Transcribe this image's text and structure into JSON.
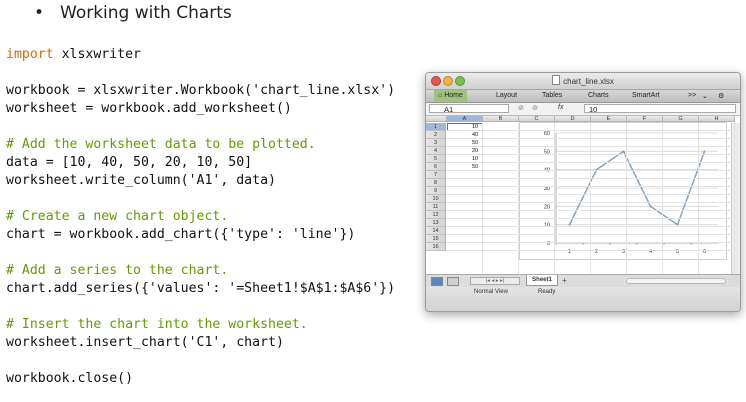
{
  "slide": {
    "bullet": "•",
    "title": "Working with Charts"
  },
  "code": [
    [
      {
        "t": "import",
        "c": "kw"
      },
      {
        "t": " xlsxwriter",
        "c": ""
      }
    ],
    [],
    [
      {
        "t": "workbook = xlsxwriter.Workbook('chart_line.xlsx')",
        "c": ""
      }
    ],
    [
      {
        "t": "worksheet = workbook.add_worksheet()",
        "c": ""
      }
    ],
    [],
    [
      {
        "t": "# Add the worksheet data to be plotted.",
        "c": "cm"
      }
    ],
    [
      {
        "t": "data = [10, 40, 50, 20, 10, 50]",
        "c": ""
      }
    ],
    [
      {
        "t": "worksheet.write_column('A1', data)",
        "c": ""
      }
    ],
    [],
    [
      {
        "t": "# Create a new chart object.",
        "c": "cm"
      }
    ],
    [
      {
        "t": "chart = workbook.add_chart({'type': 'line'})",
        "c": ""
      }
    ],
    [],
    [
      {
        "t": "# Add a series to the chart.",
        "c": "cm"
      }
    ],
    [
      {
        "t": "chart.add_series({'values': '=Sheet1!$A$1:$A$6'})",
        "c": ""
      }
    ],
    [],
    [
      {
        "t": "# Insert the chart into the worksheet.",
        "c": "cm"
      }
    ],
    [
      {
        "t": "worksheet.insert_chart('C1', chart)",
        "c": ""
      }
    ],
    [],
    [
      {
        "t": "workbook.close()",
        "c": ""
      }
    ]
  ],
  "excel": {
    "window_title": "chart_line.xlsx",
    "ribbon_tabs": [
      "Home",
      "Layout",
      "Tables",
      "Charts",
      "SmartArt"
    ],
    "ribbon_more": ">>",
    "name_box": "A1",
    "fx_label": "fx",
    "formula_value": "10",
    "columns": [
      "A",
      "B",
      "C",
      "D",
      "E",
      "F",
      "G",
      "H"
    ],
    "rows": [
      "1",
      "2",
      "3",
      "4",
      "5",
      "6",
      "7",
      "8",
      "9",
      "10",
      "11",
      "12",
      "13",
      "14",
      "15",
      "16"
    ],
    "column_a_values": [
      "10",
      "40",
      "50",
      "20",
      "10",
      "50"
    ],
    "sheet_tab": "Sheet1",
    "add_sheet": "+",
    "status_view": "Normal View",
    "status_ready": "Ready",
    "accent_color": "#9fc37e",
    "selection_color": "#9db8dc",
    "line_color": "#7aa0c4"
  },
  "chart_data": {
    "type": "line",
    "categories": [
      "1",
      "2",
      "3",
      "4",
      "5",
      "6"
    ],
    "values": [
      10,
      40,
      50,
      20,
      10,
      50
    ],
    "ylim": [
      0,
      60
    ],
    "yticks": [
      0,
      10,
      20,
      30,
      40,
      50,
      60
    ],
    "grid": true,
    "legend": "none"
  }
}
